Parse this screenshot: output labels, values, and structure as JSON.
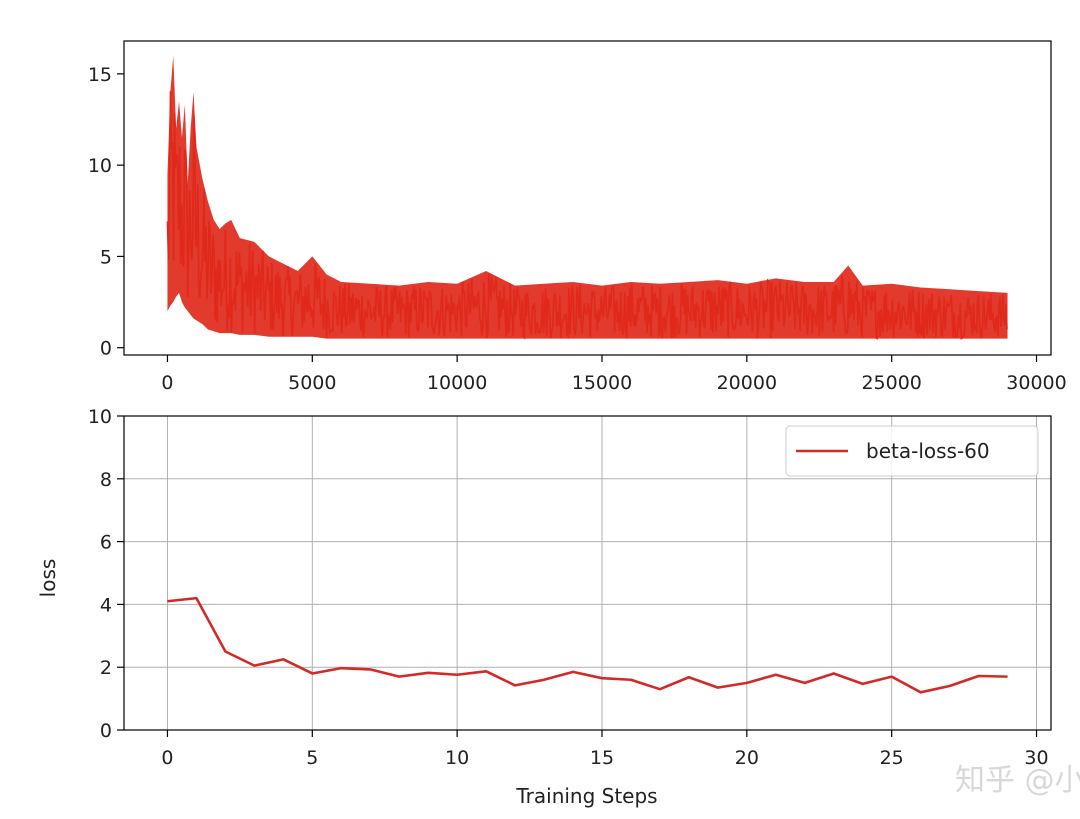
{
  "chart_data": [
    {
      "type": "line",
      "series": [
        {
          "color": "#e0291b",
          "x": [
            0,
            100,
            200,
            300,
            400,
            500,
            600,
            700,
            800,
            900,
            1000,
            1200,
            1400,
            1600,
            1800,
            2000,
            2200,
            2500,
            3000,
            3500,
            4000,
            4500,
            5000,
            5500,
            6000,
            7000,
            8000,
            9000,
            10000,
            11000,
            12000,
            13000,
            14000,
            15000,
            16000,
            17000,
            18000,
            19000,
            20000,
            21000,
            22000,
            23000,
            23500,
            24000,
            25000,
            26000,
            27000,
            28000,
            29000
          ],
          "y": [
            9.5,
            14.0,
            16.0,
            12.0,
            13.5,
            11.5,
            13.3,
            9.0,
            12.0,
            14.0,
            11.0,
            9.3,
            8.0,
            7.0,
            6.5,
            6.8,
            7.0,
            6.0,
            5.8,
            5.0,
            4.6,
            4.2,
            5.0,
            4.0,
            3.6,
            3.5,
            3.4,
            3.6,
            3.5,
            4.2,
            3.4,
            3.5,
            3.6,
            3.4,
            3.6,
            3.5,
            3.6,
            3.7,
            3.5,
            3.8,
            3.6,
            3.6,
            4.5,
            3.4,
            3.5,
            3.3,
            3.2,
            3.1,
            3.0
          ],
          "y_low": [
            2.0,
            2.3,
            2.5,
            2.8,
            3.0,
            2.5,
            2.2,
            2.0,
            1.8,
            1.6,
            1.5,
            1.3,
            1.0,
            0.9,
            0.8,
            0.8,
            0.8,
            0.7,
            0.7,
            0.6,
            0.6,
            0.6,
            0.6,
            0.5,
            0.5,
            0.5,
            0.5,
            0.5,
            0.5,
            0.5,
            0.5,
            0.5,
            0.5,
            0.5,
            0.5,
            0.5,
            0.5,
            0.5,
            0.5,
            0.5,
            0.5,
            0.5,
            0.5,
            0.5,
            0.5,
            0.5,
            0.5,
            0.5,
            0.5
          ]
        }
      ],
      "xticks": [
        "0",
        "5000",
        "10000",
        "15000",
        "20000",
        "25000",
        "30000"
      ],
      "yticks": [
        "0",
        "5",
        "10",
        "15"
      ],
      "xlim": [
        -1500,
        30500
      ],
      "ylim": [
        -0.4,
        16.8
      ]
    },
    {
      "type": "line",
      "series": [
        {
          "name": "beta-loss-60",
          "color": "#d22b27",
          "x": [
            0,
            1,
            2,
            3,
            4,
            5,
            6,
            7,
            8,
            9,
            10,
            11,
            12,
            13,
            14,
            15,
            16,
            17,
            18,
            19,
            20,
            21,
            22,
            23,
            24,
            25,
            26,
            27,
            28,
            29
          ],
          "values": [
            4.1,
            4.2,
            2.5,
            2.05,
            2.25,
            1.8,
            1.97,
            1.93,
            1.7,
            1.82,
            1.76,
            1.87,
            1.42,
            1.6,
            1.85,
            1.65,
            1.6,
            1.3,
            1.68,
            1.35,
            1.5,
            1.76,
            1.5,
            1.8,
            1.47,
            1.7,
            1.2,
            1.4,
            1.72,
            1.7
          ]
        }
      ],
      "xticks": [
        "0",
        "5",
        "10",
        "15",
        "20",
        "25",
        "30"
      ],
      "yticks": [
        "0",
        "2",
        "4",
        "6",
        "8",
        "10"
      ],
      "xlim": [
        -1.5,
        30.5
      ],
      "ylim": [
        0,
        10
      ],
      "xlabel": "Training Steps",
      "ylabel": "loss",
      "legend": "top-right",
      "grid": true
    }
  ],
  "watermark": "知乎 @小"
}
